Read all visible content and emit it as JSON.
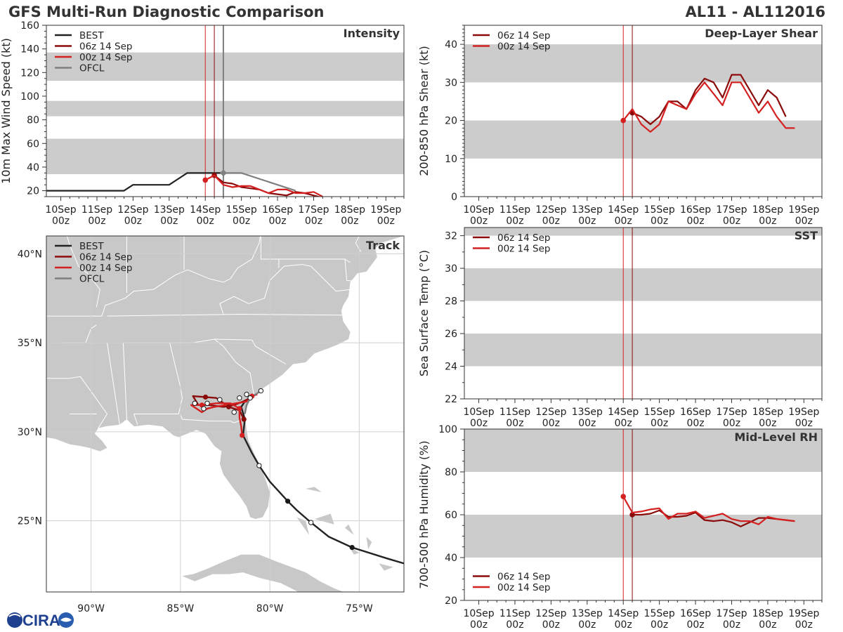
{
  "header": {
    "title": "GFS Multi-Run Diagnostic Comparison",
    "storm": "AL11 - AL112016"
  },
  "logo": {
    "text": "CIRA"
  },
  "colors": {
    "best": "#222222",
    "run06": "#8b0a0a",
    "run00": "#d42020",
    "ofcl": "#7f7f7f",
    "band": "#cccccc",
    "land": "#c8c8c8",
    "border": "#ffffff",
    "grid": "#cfcfcf"
  },
  "xaxis": {
    "labels": [
      "10Sep",
      "11Sep",
      "12Sep",
      "13Sep",
      "14Sep",
      "15Sep",
      "16Sep",
      "17Sep",
      "18Sep",
      "19Sep"
    ],
    "sub": "00z",
    "range_days": [
      9.6,
      19.5
    ]
  },
  "init_lines_days": [
    14.0,
    14.25
  ],
  "chart_data": [
    {
      "type": "line",
      "panel": "intensity",
      "title": "Intensity",
      "ylabel": "10m Max Wind Speed (kt)",
      "ylim": [
        15,
        160
      ],
      "yticks": [
        20,
        40,
        60,
        80,
        100,
        120,
        140,
        160
      ],
      "bands": [
        [
          34,
          64
        ],
        [
          83,
          96
        ],
        [
          113,
          137
        ]
      ],
      "legend": {
        "position": "top-left",
        "entries": [
          "BEST",
          "06z 14 Sep",
          "00z 14 Sep",
          "OFCL"
        ]
      },
      "ofcl_marker_day": 14.5,
      "series": [
        {
          "name": "BEST",
          "key": "best",
          "x": [
            9.5,
            11.75,
            12.0,
            13.0,
            13.5,
            14.25,
            14.5
          ],
          "y": [
            20,
            20,
            25,
            25,
            35,
            35,
            35
          ]
        },
        {
          "name": "OFCL",
          "key": "ofcl",
          "x": [
            14.5,
            15.0,
            16.5
          ],
          "y": [
            35,
            35,
            20
          ],
          "marker_start": true
        },
        {
          "name": "06z 14 Sep",
          "key": "run06",
          "x": [
            14.25,
            14.5,
            14.75,
            15.0,
            15.25,
            15.5,
            15.75,
            16.0,
            16.25,
            16.5,
            16.75,
            17.0,
            17.25
          ],
          "y": [
            33,
            27,
            26,
            23,
            22,
            21,
            18,
            17,
            16,
            19,
            18,
            16,
            14
          ],
          "marker_start": true
        },
        {
          "name": "00z 14 Sep",
          "key": "run00",
          "x": [
            14.0,
            14.25,
            14.5,
            14.75,
            15.0,
            15.25,
            15.5,
            15.75,
            16.0,
            16.25,
            16.5,
            16.75,
            17.0,
            17.25
          ],
          "y": [
            29,
            33,
            25,
            23,
            24,
            24,
            21,
            18,
            21,
            21,
            18,
            18,
            19,
            15
          ],
          "marker_start": true
        }
      ]
    },
    {
      "type": "map",
      "panel": "track",
      "title": "Track",
      "lon_range": [
        -92.5,
        -72.5
      ],
      "lat_range": [
        21,
        41
      ],
      "lon_labels": [
        [
          -90,
          "90°W"
        ],
        [
          -85,
          "85°W"
        ],
        [
          -80,
          "80°W"
        ],
        [
          -75,
          "75°W"
        ]
      ],
      "lat_labels": [
        [
          25,
          "25°N"
        ],
        [
          30,
          "30°N"
        ],
        [
          35,
          "35°N"
        ],
        [
          40,
          "40°N"
        ]
      ],
      "legend": {
        "position": "top-left",
        "entries": [
          "BEST",
          "06z 14 Sep",
          "00z 14 Sep",
          "OFCL"
        ]
      },
      "tracks": [
        {
          "name": "BEST",
          "key": "best",
          "points": [
            [
              -70,
              22.4
            ],
            [
              -72.5,
              22.6
            ],
            [
              -73.5,
              22.9
            ],
            [
              -75.4,
              23.5
            ],
            [
              -76.7,
              24.1
            ],
            [
              -77.7,
              24.9
            ],
            [
              -78.5,
              25.6
            ],
            [
              -79.0,
              26.1
            ],
            [
              -80.0,
              27.2
            ],
            [
              -80.6,
              28.1
            ],
            [
              -81.0,
              28.8
            ],
            [
              -81.5,
              29.8
            ],
            [
              -81.4,
              30.7
            ],
            [
              -81.6,
              31.4
            ],
            [
              -81.4,
              31.7
            ]
          ],
          "filled": [
            [
              -75.4,
              23.5
            ],
            [
              -79.0,
              26.1
            ]
          ],
          "open": [
            [
              -77.7,
              24.9
            ],
            [
              -80.6,
              28.1
            ]
          ]
        },
        {
          "name": "06z 14 Sep",
          "key": "run06",
          "points": [
            [
              -81.45,
              30.7
            ],
            [
              -81.7,
              31.2
            ],
            [
              -82.3,
              31.4
            ],
            [
              -83.0,
              31.9
            ],
            [
              -84.3,
              32.0
            ],
            [
              -84.0,
              31.5
            ],
            [
              -83.4,
              31.5
            ],
            [
              -82.6,
              31.4
            ],
            [
              -82.0,
              31.5
            ],
            [
              -81.5,
              31.7
            ],
            [
              -81.1,
              31.9
            ],
            [
              -80.9,
              32.0
            ]
          ],
          "filled": [
            [
              -81.45,
              30.7
            ],
            [
              -82.3,
              31.4
            ],
            [
              -83.6,
              31.95
            ],
            [
              -81.1,
              31.9
            ]
          ],
          "open": []
        },
        {
          "name": "00z 14 Sep",
          "key": "run00",
          "points": [
            [
              -81.55,
              29.8
            ],
            [
              -81.6,
              30.3
            ],
            [
              -81.7,
              30.8
            ],
            [
              -81.7,
              31.3
            ],
            [
              -82.2,
              31.6
            ],
            [
              -83.0,
              31.6
            ],
            [
              -83.8,
              31.5
            ],
            [
              -84.4,
              31.5
            ],
            [
              -83.8,
              31.1
            ],
            [
              -83.5,
              31.3
            ],
            [
              -83.1,
              31.4
            ],
            [
              -82.5,
              31.5
            ],
            [
              -81.9,
              31.6
            ],
            [
              -81.3,
              31.7
            ],
            [
              -81.0,
              32.0
            ],
            [
              -80.7,
              32.1
            ]
          ],
          "filled": [
            [
              -81.55,
              29.8
            ],
            [
              -81.7,
              31.3
            ],
            [
              -83.8,
              31.5
            ],
            [
              -81.0,
              32.0
            ]
          ],
          "open": []
        },
        {
          "name": "OFCL",
          "key": "ofcl",
          "points": [
            [
              -81.4,
              31.0
            ],
            [
              -81.3,
              31.5
            ],
            [
              -81.1,
              31.9
            ],
            [
              -80.8,
              32.1
            ],
            [
              -80.5,
              32.3
            ]
          ],
          "filled": [],
          "open": [
            [
              -81.1,
              31.9
            ],
            [
              -80.5,
              32.3
            ],
            [
              -82.8,
              31.8
            ],
            [
              -83.5,
              31.6
            ],
            [
              -82.0,
              31.1
            ],
            [
              -83.7,
              31.3
            ],
            [
              -84.2,
              31.6
            ],
            [
              -81.7,
              31.9
            ],
            [
              -81.3,
              32.1
            ]
          ]
        }
      ]
    },
    {
      "type": "line",
      "panel": "shear",
      "title": "Deep-Layer Shear",
      "ylabel": "200-850 hPa Shear (kt)",
      "ylim": [
        0,
        45
      ],
      "yticks": [
        0,
        10,
        20,
        30,
        40
      ],
      "bands": [
        [
          10,
          20
        ],
        [
          30,
          40
        ]
      ],
      "legend": {
        "position": "top-left",
        "entries": [
          "06z 14 Sep",
          "00z 14 Sep"
        ]
      },
      "series": [
        {
          "name": "06z 14 Sep",
          "key": "run06",
          "x": [
            14.25,
            14.5,
            14.75,
            15.0,
            15.25,
            15.5,
            15.75,
            16.0,
            16.25,
            16.5,
            16.75,
            17.0,
            17.25,
            17.5,
            17.75,
            18.0,
            18.25,
            18.5
          ],
          "y": [
            22,
            21,
            19,
            21,
            25,
            25,
            23,
            28,
            31,
            30,
            26,
            32,
            32,
            28,
            24,
            28,
            26,
            21
          ],
          "marker_start": true
        },
        {
          "name": "00z 14 Sep",
          "key": "run00",
          "x": [
            14.0,
            14.25,
            14.5,
            14.75,
            15.0,
            15.25,
            15.5,
            15.75,
            16.0,
            16.25,
            16.5,
            16.75,
            17.0,
            17.25,
            17.5,
            17.75,
            18.0,
            18.25,
            18.5,
            18.75
          ],
          "y": [
            20,
            23,
            19,
            17,
            19,
            25,
            24,
            23,
            27,
            30,
            27,
            24,
            30,
            30,
            26,
            22,
            25,
            21,
            18,
            18
          ],
          "marker_start": true
        }
      ]
    },
    {
      "type": "line",
      "panel": "sst",
      "title": "SST",
      "ylabel": "Sea Surface Temp (°C)",
      "ylim": [
        22,
        32.5
      ],
      "yticks": [
        22,
        24,
        26,
        28,
        30,
        32
      ],
      "bands": [
        [
          24,
          26
        ],
        [
          28,
          30
        ],
        [
          32,
          32.5
        ]
      ],
      "legend": {
        "position": "top-left",
        "entries": [
          "06z 14 Sep",
          "00z 14 Sep"
        ]
      },
      "series": []
    },
    {
      "type": "line",
      "panel": "rh",
      "title": "Mid-Level RH",
      "ylabel": "700-500 hPa Humidity (%)",
      "ylim": [
        20,
        100
      ],
      "yticks": [
        20,
        40,
        60,
        80,
        100
      ],
      "bands": [
        [
          40,
          60
        ],
        [
          80,
          100
        ]
      ],
      "legend": {
        "position": "bottom-left",
        "entries": [
          "06z 14 Sep",
          "00z 14 Sep"
        ]
      },
      "series": [
        {
          "name": "06z 14 Sep",
          "key": "run06",
          "x": [
            14.25,
            14.5,
            14.75,
            15.0,
            15.25,
            15.5,
            15.75,
            16.0,
            16.25,
            16.5,
            16.75,
            17.0,
            17.25,
            17.5,
            17.75,
            18.0,
            18.25,
            18.5,
            18.75
          ],
          "y": [
            60,
            60,
            60.5,
            62,
            59,
            59,
            59.5,
            61,
            57.5,
            57,
            57.5,
            56.5,
            54.5,
            56.5,
            58.5,
            58.5,
            58,
            57.5,
            57
          ],
          "marker_start": true
        },
        {
          "name": "00z 14 Sep",
          "key": "run00",
          "x": [
            14.0,
            14.25,
            14.5,
            14.75,
            15.0,
            15.25,
            15.5,
            15.75,
            16.0,
            16.25,
            16.5,
            16.75,
            17.0,
            17.25,
            17.5,
            17.75,
            18.0,
            18.25,
            18.5,
            18.75
          ],
          "y": [
            68.5,
            61,
            61.5,
            62.5,
            63,
            58,
            60.5,
            60.5,
            61.5,
            58.5,
            59.5,
            60.5,
            58,
            57,
            57,
            55.5,
            59,
            58,
            57.5,
            57
          ],
          "marker_start": true
        }
      ]
    }
  ]
}
